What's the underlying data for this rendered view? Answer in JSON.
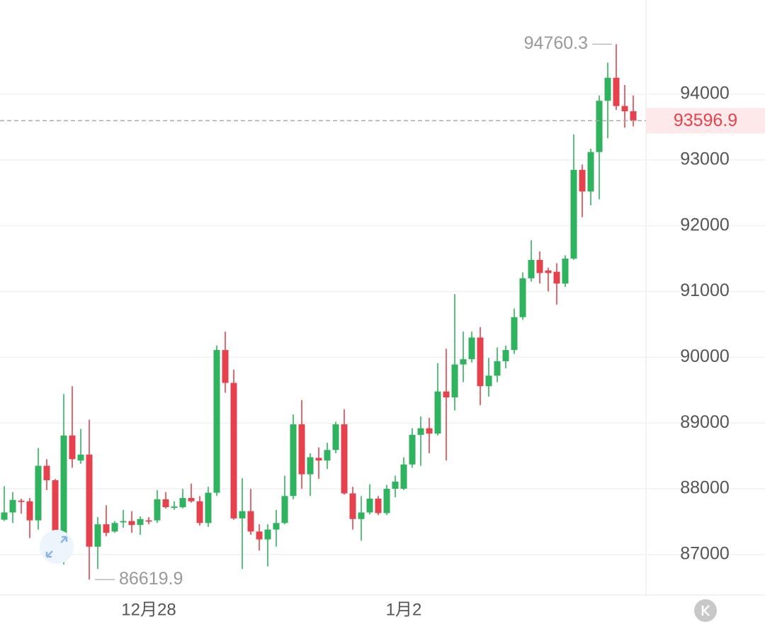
{
  "chart_data": {
    "type": "candlestick",
    "categories": [
      null,
      null,
      null,
      null,
      null,
      null,
      null,
      null,
      null,
      null,
      null,
      null,
      null,
      null,
      null,
      null,
      null,
      "12月28",
      null,
      null,
      null,
      null,
      null,
      null,
      null,
      null,
      null,
      null,
      null,
      null,
      null,
      null,
      null,
      null,
      null,
      null,
      null,
      null,
      null,
      null,
      null,
      null,
      null,
      null,
      null,
      null,
      null,
      "1月2",
      null,
      null,
      null,
      null,
      null,
      null,
      null,
      null,
      null,
      null,
      null,
      null,
      null,
      null,
      null,
      null,
      null,
      null,
      null,
      null,
      null,
      null,
      null,
      null,
      null,
      null,
      null
    ],
    "open": [
      87530,
      87640,
      87820,
      87810,
      87520,
      88350,
      88130,
      87190,
      88810,
      88430,
      88520,
      87120,
      87460,
      87350,
      87490,
      87510,
      87450,
      87520,
      87520,
      87840,
      87710,
      87720,
      87860,
      87810,
      87480,
      87940,
      90110,
      89610,
      87550,
      87660,
      87350,
      87230,
      87380,
      87480,
      87890,
      88980,
      88220,
      88470,
      88430,
      88590,
      88980,
      87930,
      87540,
      87640,
      87850,
      87630,
      88000,
      88000,
      88370,
      88820,
      88920,
      88840,
      89480,
      89390,
      89890,
      89970,
      90300,
      89560,
      89720,
      89940,
      90110,
      90610,
      91200,
      91480,
      91320,
      91300,
      91120,
      91500,
      92850,
      92520,
      93120,
      93900,
      94250,
      93820,
      93740
    ],
    "high": [
      88040,
      87950,
      87850,
      87860,
      88620,
      88450,
      88150,
      89440,
      89560,
      88910,
      89050,
      87570,
      87750,
      87510,
      87680,
      87660,
      87580,
      87570,
      87980,
      87950,
      87810,
      88000,
      88080,
      87890,
      88030,
      90180,
      90390,
      89810,
      88160,
      88000,
      87460,
      87460,
      87680,
      88200,
      89130,
      89350,
      88540,
      88630,
      88700,
      89020,
      89210,
      88030,
      87890,
      88070,
      87890,
      88060,
      88200,
      88480,
      88920,
      89100,
      89080,
      89910,
      90130,
      90960,
      90390,
      90390,
      90460,
      89990,
      90150,
      90180,
      90740,
      91290,
      91780,
      91610,
      91360,
      91430,
      91550,
      93390,
      92930,
      93170,
      93980,
      94480,
      94760.3,
      94140,
      93980
    ],
    "low": [
      87510,
      87480,
      87620,
      87250,
      87380,
      87980,
      86920,
      86850,
      88320,
      88380,
      86619.9,
      86780,
      87280,
      87330,
      87410,
      87330,
      87300,
      87460,
      87480,
      87700,
      87680,
      87700,
      87790,
      87440,
      87420,
      87890,
      89460,
      87530,
      86780,
      87300,
      87060,
      86820,
      87120,
      87460,
      87840,
      88000,
      87890,
      88150,
      88300,
      88540,
      87910,
      87380,
      87210,
      87610,
      87600,
      87600,
      87870,
      87980,
      88320,
      88350,
      88540,
      88810,
      88430,
      89190,
      89620,
      89920,
      89270,
      89400,
      89620,
      89830,
      90050,
      90570,
      91150,
      91120,
      91000,
      90800,
      91070,
      91480,
      92130,
      92310,
      92400,
      93330,
      93760,
      93490,
      93510
    ],
    "close": [
      87640,
      87830,
      87800,
      87520,
      88350,
      88130,
      87190,
      88810,
      88450,
      88520,
      87120,
      87460,
      87330,
      87480,
      87510,
      87450,
      87540,
      87500,
      87840,
      87720,
      87730,
      87860,
      87810,
      87480,
      87940,
      90110,
      89610,
      87550,
      87660,
      87350,
      87230,
      87380,
      87480,
      87890,
      88980,
      88220,
      88480,
      88430,
      88590,
      88980,
      87930,
      87540,
      87640,
      87850,
      87630,
      88000,
      88110,
      88370,
      88820,
      88920,
      88840,
      89480,
      89390,
      89890,
      89970,
      90300,
      89560,
      89720,
      89940,
      90110,
      90610,
      91200,
      91480,
      91280,
      91280,
      91120,
      91500,
      92850,
      92520,
      93120,
      93900,
      94250,
      93820,
      93740,
      93596.9
    ],
    "up_color": "#2fb35f",
    "down_color": "#e5424d",
    "ylim": [
      86385,
      95432
    ],
    "yticks": [
      87000,
      88000,
      89000,
      90000,
      91000,
      92000,
      93000,
      94000
    ],
    "grid": true
  }
}
